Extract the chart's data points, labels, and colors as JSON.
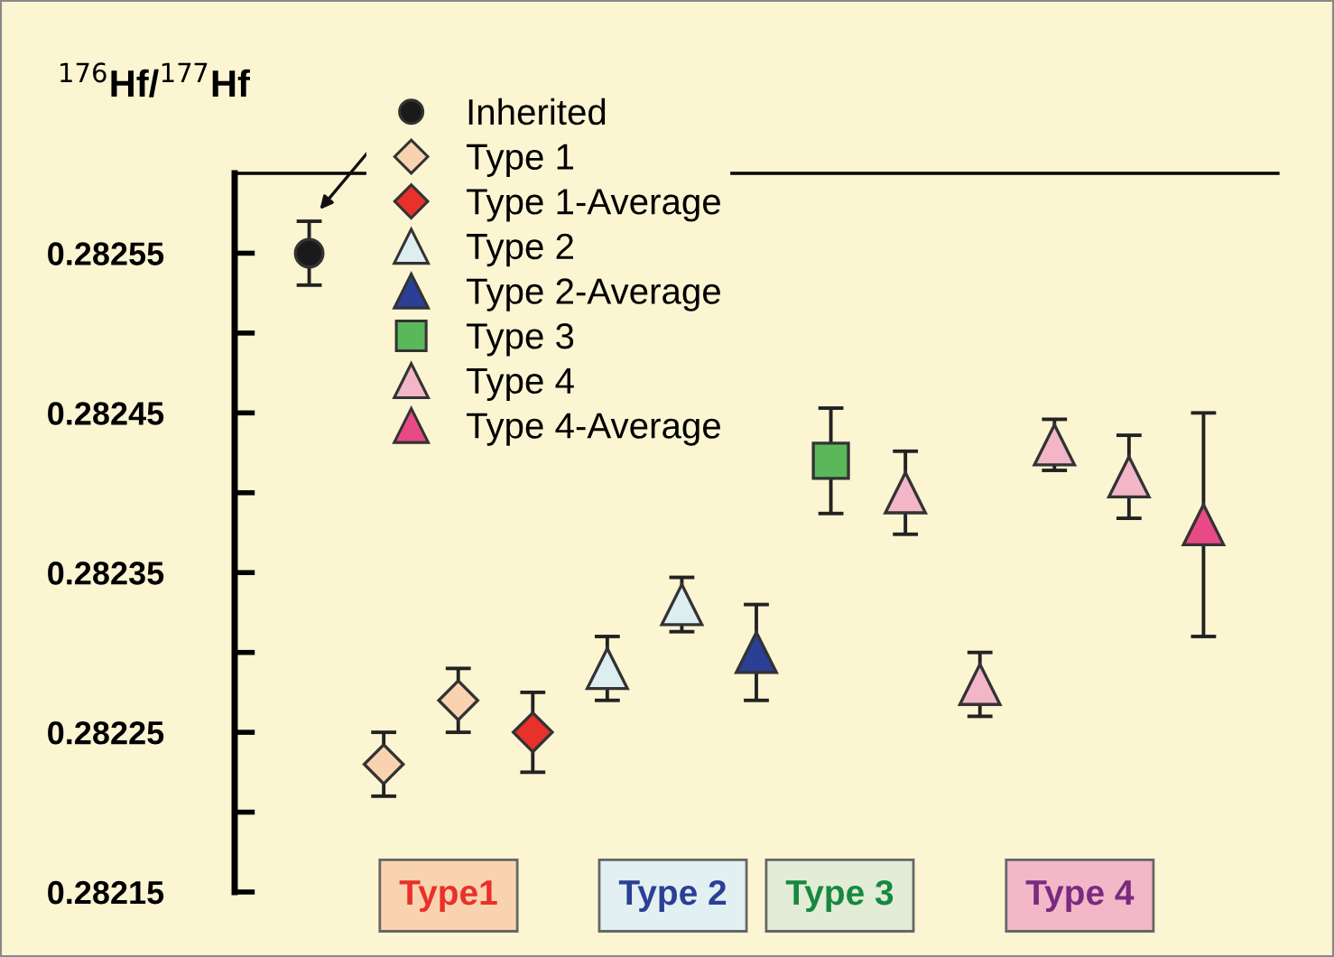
{
  "chart_data": {
    "type": "scatter",
    "ylabel": "$^{176}$Hf/$^{177}$Hf",
    "categories": [
      null,
      null,
      null,
      null,
      null,
      null,
      null,
      null,
      null,
      null,
      null,
      null,
      null
    ],
    "ylim": [
      0.28215,
      0.2826
    ],
    "yticks": [
      0.28215,
      {
        "value": 0.2822,
        "label": null
      },
      0.28225,
      {
        "value": 0.2823,
        "label": null
      },
      0.28235,
      {
        "value": 0.2824,
        "label": null
      },
      0.28245,
      {
        "value": 0.2825,
        "label": null
      },
      0.28255
    ],
    "legend": "top left",
    "grid": false,
    "series": [
      {
        "name": "Inherited",
        "color": "#1a1a1a",
        "marker": "circle",
        "values": [
          0.28255,
          null,
          null,
          null,
          null,
          null,
          null,
          null,
          null,
          null,
          null,
          null,
          null
        ],
        "errors": [
          2e-05,
          null,
          null,
          null,
          null,
          null,
          null,
          null,
          null,
          null,
          null,
          null,
          null
        ]
      },
      {
        "name": "Type 1",
        "color": "#f9d3b0",
        "marker": "diamond",
        "values": [
          null,
          0.28223,
          0.28227,
          null,
          null,
          null,
          null,
          null,
          null,
          null,
          null,
          null,
          null
        ],
        "errors": [
          null,
          2e-05,
          2e-05,
          null,
          null,
          null,
          null,
          null,
          null,
          null,
          null,
          null,
          null
        ]
      },
      {
        "name": "Type 1-Average",
        "color": "#e8312a",
        "marker": "diamond",
        "values": [
          null,
          null,
          null,
          0.28225,
          null,
          null,
          null,
          null,
          null,
          null,
          null,
          null,
          null
        ],
        "errors": [
          null,
          null,
          null,
          2.5e-05,
          null,
          null,
          null,
          null,
          null,
          null,
          null,
          null,
          null
        ]
      },
      {
        "name": "Type 2",
        "color": "#ddeef0",
        "marker": "triangle",
        "values": [
          null,
          null,
          null,
          null,
          0.28229,
          0.28233,
          null,
          null,
          null,
          null,
          null,
          null,
          null
        ],
        "errors": [
          null,
          null,
          null,
          null,
          2e-05,
          1.7e-05,
          null,
          null,
          null,
          null,
          null,
          null,
          null
        ]
      },
      {
        "name": "Type 2-Average",
        "color": "#2a3f95",
        "marker": "triangle",
        "values": [
          null,
          null,
          null,
          null,
          null,
          null,
          0.2823,
          null,
          null,
          null,
          null,
          null,
          null
        ],
        "errors": [
          null,
          null,
          null,
          null,
          null,
          null,
          3e-05,
          null,
          null,
          null,
          null,
          null,
          null
        ]
      },
      {
        "name": "Type 3",
        "color": "#5bb85a",
        "marker": "square",
        "values": [
          null,
          null,
          null,
          null,
          null,
          null,
          null,
          0.28242,
          null,
          null,
          null,
          null,
          null
        ],
        "errors": [
          null,
          null,
          null,
          null,
          null,
          null,
          null,
          3.3e-05,
          null,
          null,
          null,
          null,
          null
        ]
      },
      {
        "name": "Type 4",
        "color": "#f2b6c8",
        "marker": "triangle",
        "values": [
          null,
          null,
          null,
          null,
          null,
          null,
          null,
          null,
          0.2824,
          0.28228,
          0.28243,
          0.28241,
          null
        ],
        "errors": [
          null,
          null,
          null,
          null,
          null,
          null,
          null,
          null,
          2.6e-05,
          2e-05,
          1.6e-05,
          2.6e-05,
          null
        ]
      },
      {
        "name": "Type 4-Average",
        "color": "#e84a85",
        "marker": "triangle",
        "values": [
          null,
          null,
          null,
          null,
          null,
          null,
          null,
          null,
          null,
          null,
          null,
          null,
          0.28238
        ],
        "errors": [
          null,
          null,
          null,
          null,
          null,
          null,
          null,
          null,
          null,
          null,
          null,
          null,
          7e-05
        ]
      }
    ],
    "annotations": [
      "Type1",
      "Type 2",
      "Type 3",
      "Type 4"
    ]
  }
}
